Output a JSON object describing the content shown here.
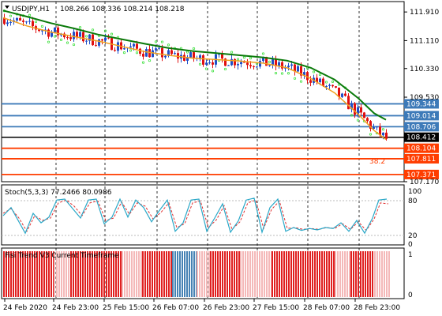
{
  "header": {
    "symbol": "USDJPY,H1",
    "ohlc": "108.266 108.336 108.214 108.218"
  },
  "colors": {
    "bull": "#1f4fc8",
    "bear": "#e01010",
    "ma_fast": "#f0a020",
    "ma_slow": "#0a7a0a",
    "psar": "#40e040",
    "level_blue": "#3d7ab8",
    "level_red": "#ff3d00",
    "level_black": "#000000",
    "stoch_main": "#2aa8c8",
    "stoch_signal": "#e03030",
    "trend_up": "#4682b4",
    "trend_down": "#e02020",
    "trend_light": "#f4b8b8"
  },
  "main_chart": {
    "y_ticks": [
      "111.910",
      "111.110",
      "110.330",
      "109.530",
      "107.170"
    ],
    "fib_label": "38.2",
    "levels": [
      {
        "name": "level-109-344",
        "price": 109.344,
        "label": "109.344",
        "type": "blue"
      },
      {
        "name": "level-109-014",
        "price": 109.014,
        "label": "109.014",
        "type": "blue"
      },
      {
        "name": "level-108-706",
        "price": 108.706,
        "label": "108.706",
        "type": "blue"
      },
      {
        "name": "level-108-412",
        "price": 108.412,
        "label": "108.412",
        "type": "black"
      },
      {
        "name": "level-108-104",
        "price": 108.104,
        "label": "108.104",
        "type": "red"
      },
      {
        "name": "level-107-811",
        "price": 107.811,
        "label": "107.811",
        "type": "red"
      },
      {
        "name": "level-107-371",
        "price": 107.371,
        "label": "107.371",
        "type": "red"
      }
    ]
  },
  "stoch": {
    "title": "Stoch(5,3,3) 77.2466 80.0986",
    "y_ticks": [
      "100",
      "80",
      "20",
      "0"
    ]
  },
  "trend": {
    "title": "Fisi Trend V3 Current Timeframe",
    "y_ticks": [
      "1",
      "0"
    ]
  },
  "x_axis": {
    "ticks": [
      "24 Feb 2020",
      "24 Feb 23:00",
      "25 Feb 15:00",
      "26 Feb 07:00",
      "26 Feb 23:00",
      "27 Feb 15:00",
      "28 Feb 07:00",
      "28 Feb 23:00"
    ]
  },
  "chart_data": {
    "type": "candlestick",
    "title": "USDJPY,H1",
    "ylim": [
      107.17,
      112.2
    ],
    "ma_fast_points": [
      [
        0,
        111.75
      ],
      [
        30,
        111.52
      ],
      [
        60,
        111.35
      ],
      [
        90,
        111.22
      ],
      [
        120,
        111.1
      ],
      [
        150,
        110.95
      ],
      [
        180,
        110.8
      ],
      [
        210,
        110.7
      ],
      [
        240,
        110.62
      ],
      [
        270,
        110.58
      ],
      [
        300,
        110.54
      ],
      [
        330,
        110.48
      ],
      [
        360,
        110.35
      ],
      [
        390,
        110.05
      ],
      [
        420,
        109.65
      ],
      [
        450,
        109.05
      ],
      [
        470,
        108.6
      ],
      [
        485,
        108.35
      ]
    ],
    "ma_slow_points": [
      [
        0,
        111.95
      ],
      [
        30,
        111.78
      ],
      [
        60,
        111.6
      ],
      [
        90,
        111.45
      ],
      [
        120,
        111.28
      ],
      [
        150,
        111.15
      ],
      [
        180,
        111.02
      ],
      [
        210,
        110.9
      ],
      [
        240,
        110.82
      ],
      [
        270,
        110.76
      ],
      [
        300,
        110.7
      ],
      [
        330,
        110.64
      ],
      [
        360,
        110.55
      ],
      [
        390,
        110.35
      ],
      [
        420,
        110.02
      ],
      [
        450,
        109.5
      ],
      [
        470,
        109.08
      ],
      [
        485,
        108.9
      ]
    ],
    "stoch_points": [
      [
        0,
        55
      ],
      [
        10,
        72
      ],
      [
        20,
        42
      ],
      [
        28,
        18
      ],
      [
        38,
        60
      ],
      [
        48,
        40
      ],
      [
        58,
        52
      ],
      [
        68,
        88
      ],
      [
        78,
        90
      ],
      [
        88,
        70
      ],
      [
        98,
        50
      ],
      [
        108,
        88
      ],
      [
        118,
        90
      ],
      [
        128,
        38
      ],
      [
        138,
        52
      ],
      [
        148,
        90
      ],
      [
        158,
        52
      ],
      [
        168,
        88
      ],
      [
        178,
        72
      ],
      [
        188,
        42
      ],
      [
        198,
        66
      ],
      [
        208,
        88
      ],
      [
        218,
        22
      ],
      [
        228,
        40
      ],
      [
        238,
        88
      ],
      [
        248,
        90
      ],
      [
        258,
        22
      ],
      [
        268,
        50
      ],
      [
        278,
        80
      ],
      [
        288,
        20
      ],
      [
        298,
        44
      ],
      [
        308,
        88
      ],
      [
        318,
        92
      ],
      [
        328,
        20
      ],
      [
        338,
        72
      ],
      [
        348,
        90
      ],
      [
        358,
        22
      ],
      [
        368,
        30
      ],
      [
        378,
        24
      ],
      [
        388,
        28
      ],
      [
        398,
        25
      ],
      [
        408,
        30
      ],
      [
        418,
        28
      ],
      [
        428,
        40
      ],
      [
        438,
        22
      ],
      [
        448,
        45
      ],
      [
        458,
        18
      ],
      [
        468,
        50
      ],
      [
        476,
        88
      ],
      [
        486,
        90
      ]
    ],
    "stoch_signal_points": [
      [
        0,
        60
      ],
      [
        10,
        70
      ],
      [
        20,
        50
      ],
      [
        30,
        22
      ],
      [
        40,
        55
      ],
      [
        50,
        45
      ],
      [
        60,
        50
      ],
      [
        70,
        82
      ],
      [
        80,
        88
      ],
      [
        90,
        75
      ],
      [
        100,
        55
      ],
      [
        110,
        82
      ],
      [
        120,
        86
      ],
      [
        130,
        45
      ],
      [
        140,
        50
      ],
      [
        150,
        84
      ],
      [
        160,
        58
      ],
      [
        170,
        82
      ],
      [
        180,
        75
      ],
      [
        190,
        48
      ],
      [
        200,
        62
      ],
      [
        210,
        82
      ],
      [
        220,
        30
      ],
      [
        230,
        38
      ],
      [
        240,
        82
      ],
      [
        250,
        86
      ],
      [
        260,
        30
      ],
      [
        270,
        46
      ],
      [
        280,
        76
      ],
      [
        290,
        26
      ],
      [
        300,
        42
      ],
      [
        310,
        82
      ],
      [
        320,
        88
      ],
      [
        330,
        28
      ],
      [
        340,
        68
      ],
      [
        350,
        86
      ],
      [
        360,
        28
      ],
      [
        370,
        30
      ],
      [
        380,
        26
      ],
      [
        390,
        28
      ],
      [
        400,
        26
      ],
      [
        410,
        30
      ],
      [
        420,
        28
      ],
      [
        430,
        38
      ],
      [
        440,
        26
      ],
      [
        450,
        42
      ],
      [
        460,
        24
      ],
      [
        470,
        48
      ],
      [
        478,
        82
      ],
      [
        488,
        80
      ]
    ],
    "trend_segments": [
      [
        0,
        64,
        "down"
      ],
      [
        64,
        85,
        "light"
      ],
      [
        85,
        150,
        "down"
      ],
      [
        150,
        176,
        "light"
      ],
      [
        176,
        214,
        "down"
      ],
      [
        214,
        245,
        "up"
      ],
      [
        245,
        262,
        "light"
      ],
      [
        262,
        300,
        "down"
      ],
      [
        300,
        340,
        "light"
      ],
      [
        340,
        420,
        "down"
      ],
      [
        420,
        440,
        "light"
      ],
      [
        440,
        470,
        "down"
      ],
      [
        470,
        490,
        "light"
      ]
    ]
  }
}
